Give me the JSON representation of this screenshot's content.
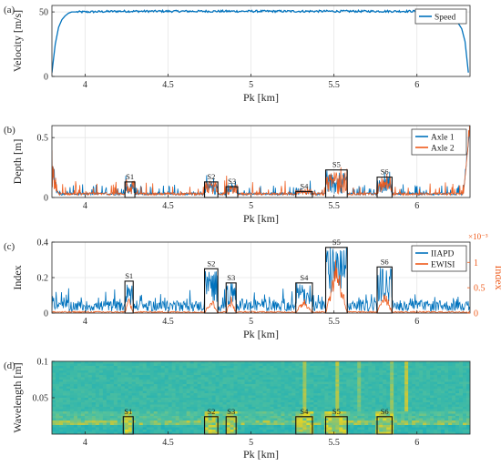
{
  "chart_data": [
    {
      "panel": "(a)",
      "type": "line",
      "xlabel": "Pk [km]",
      "ylabel": "Velocity [m/s]",
      "xlim": [
        3.8,
        6.32
      ],
      "ylim": [
        0,
        55
      ],
      "xticks": [
        "4",
        "4.5",
        "5",
        "5.5",
        "6"
      ],
      "yticks": [
        "0",
        "50"
      ],
      "grid": true,
      "legend_position": "top-right",
      "series": [
        {
          "name": "Speed",
          "color": "#0072BD",
          "x": [
            3.8,
            3.82,
            3.84,
            3.86,
            3.88,
            3.9,
            3.92,
            3.95,
            4.0,
            4.2,
            4.5,
            4.8,
            5.0,
            5.2,
            5.5,
            5.8,
            6.0,
            6.15,
            6.2,
            6.24,
            6.27,
            6.29,
            6.3,
            6.31
          ],
          "values": [
            3,
            25,
            38,
            44,
            47,
            49,
            50,
            50,
            50,
            50.5,
            50.5,
            50.5,
            50.5,
            50.5,
            50.5,
            50.5,
            50.5,
            50,
            47,
            43,
            37,
            27,
            15,
            3
          ]
        }
      ]
    },
    {
      "panel": "(b)",
      "type": "line",
      "xlabel": "Pk [km]",
      "ylabel": "Depth [m]",
      "xlim": [
        3.8,
        6.32
      ],
      "ylim": [
        0,
        0.6
      ],
      "xticks": [
        "4",
        "4.5",
        "5",
        "5.5",
        "6"
      ],
      "yticks": [
        "0",
        "0.5"
      ],
      "grid": true,
      "legend_position": "top-right",
      "series": [
        {
          "name": "Axle 1",
          "color": "#0072BD",
          "baseline": 0.02,
          "noise": 0.05
        },
        {
          "name": "Axle 2",
          "color": "#EE5A1A",
          "baseline": 0.02,
          "noise": 0.07
        }
      ],
      "segments": [
        {
          "label": "S1",
          "x0": 4.24,
          "x1": 4.3,
          "y0": 0,
          "y1": 0.13
        },
        {
          "label": "S2",
          "x0": 4.72,
          "x1": 4.8,
          "y0": 0,
          "y1": 0.13
        },
        {
          "label": "S3",
          "x0": 4.85,
          "x1": 4.92,
          "y0": 0,
          "y1": 0.09
        },
        {
          "label": "S4",
          "x0": 5.27,
          "x1": 5.37,
          "y0": 0,
          "y1": 0.05
        },
        {
          "label": "S5",
          "x0": 5.45,
          "x1": 5.58,
          "y0": 0,
          "y1": 0.23
        },
        {
          "label": "S6",
          "x0": 5.76,
          "x1": 5.85,
          "y0": 0,
          "y1": 0.17
        }
      ]
    },
    {
      "panel": "(c)",
      "type": "line",
      "xlabel": "Pk [km]",
      "ylabel": "Index",
      "ylabel_right": "Index",
      "right_axis_exponent": "×10⁻³",
      "xlim": [
        3.8,
        6.32
      ],
      "ylim": [
        0,
        0.4
      ],
      "ylim_right": [
        0,
        1.4
      ],
      "xticks": [
        "4",
        "4.5",
        "5",
        "5.5",
        "6"
      ],
      "yticks": [
        "0",
        "0.2",
        "0.4"
      ],
      "yticks_right": [
        "0",
        "0.5",
        "1"
      ],
      "grid": true,
      "legend_position": "top-right",
      "series": [
        {
          "name": "IIAPD",
          "color": "#0072BD",
          "axis": "left",
          "baseline": 0.05
        },
        {
          "name": "EWISI",
          "color": "#EE5A1A",
          "axis": "right",
          "baseline": 0.02
        }
      ],
      "segments": [
        {
          "label": "S1",
          "x0": 4.24,
          "x1": 4.29,
          "y0": 0,
          "y1": 0.18
        },
        {
          "label": "S2",
          "x0": 4.72,
          "x1": 4.8,
          "y0": 0,
          "y1": 0.25
        },
        {
          "label": "S3",
          "x0": 4.85,
          "x1": 4.91,
          "y0": 0,
          "y1": 0.17
        },
        {
          "label": "S4",
          "x0": 5.27,
          "x1": 5.37,
          "y0": 0,
          "y1": 0.17
        },
        {
          "label": "S5",
          "x0": 5.45,
          "x1": 5.58,
          "y0": 0,
          "y1": 0.37
        },
        {
          "label": "S6",
          "x0": 5.76,
          "x1": 5.85,
          "y0": 0,
          "y1": 0.26
        }
      ]
    },
    {
      "panel": "(d)",
      "type": "heatmap",
      "xlabel": "Pk [km]",
      "ylabel": "Wavelength [m]",
      "xlim": [
        3.8,
        6.32
      ],
      "ylim": [
        0,
        0.1
      ],
      "xticks": [
        "4",
        "4.5",
        "5",
        "5.5",
        "6"
      ],
      "yticks": [
        "0.05",
        "0.1"
      ],
      "colormap": [
        "#1a3a8a",
        "#2a7fd8",
        "#21b0b5",
        "#56c29b",
        "#c8c83a",
        "#f4e21a"
      ],
      "segments": [
        {
          "label": "S1",
          "x0": 4.23,
          "x1": 4.29,
          "y0": 0.0,
          "y1": 0.024
        },
        {
          "label": "S2",
          "x0": 4.72,
          "x1": 4.8,
          "y0": 0.0,
          "y1": 0.024
        },
        {
          "label": "S3",
          "x0": 4.85,
          "x1": 4.91,
          "y0": 0.0,
          "y1": 0.024
        },
        {
          "label": "S4",
          "x0": 5.27,
          "x1": 5.37,
          "y0": 0.0,
          "y1": 0.024
        },
        {
          "label": "S5",
          "x0": 5.45,
          "x1": 5.58,
          "y0": 0.0,
          "y1": 0.024
        },
        {
          "label": "S6",
          "x0": 5.76,
          "x1": 5.85,
          "y0": 0.0,
          "y1": 0.024
        }
      ]
    }
  ]
}
